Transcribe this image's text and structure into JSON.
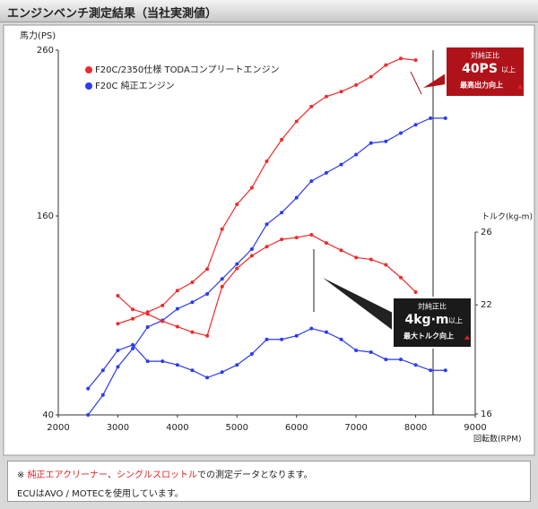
{
  "header": {
    "title": "エンジンベンチ測定結果（当社実測値）"
  },
  "chart_data": {
    "type": "line",
    "y_label": "馬力(PS)",
    "y2_label": "トルク(kg-m)",
    "x_label": "回転数(RPM)",
    "xlim": [
      2000,
      9000
    ],
    "xticks": [
      2000,
      3000,
      4000,
      5000,
      6000,
      7000,
      8000,
      9000
    ],
    "ylim": [
      40,
      260
    ],
    "yticks": [
      40,
      160,
      260
    ],
    "y2lim": [
      16,
      26
    ],
    "y2ticks": [
      16,
      22,
      26
    ],
    "series": [
      {
        "name": "F20C/2350仕様 TODAコンプリートエンジン",
        "color": "#ee2b2b",
        "x": [
          3000,
          3250,
          3500,
          3750,
          4000,
          4250,
          4500,
          4750,
          5000,
          5250,
          5500,
          5750,
          6000,
          6250,
          6500,
          6750,
          7000,
          7250,
          7500,
          7750,
          8000
        ],
        "values": [
          95,
          98,
          102,
          106,
          115,
          120,
          128,
          152,
          167,
          177,
          193,
          206,
          217,
          226,
          232,
          235,
          239,
          244,
          251,
          255,
          254
        ]
      },
      {
        "name": "F20C 純正エンジン",
        "color": "#2b3bee",
        "x": [
          2500,
          2750,
          3000,
          3250,
          3500,
          3750,
          4000,
          4250,
          4500,
          4750,
          5000,
          5250,
          5500,
          5750,
          6000,
          6250,
          6500,
          6750,
          7000,
          7250,
          7500,
          7750,
          8000,
          8250,
          8500
        ],
        "values": [
          40,
          52,
          69,
          80,
          93,
          97,
          104,
          108,
          113,
          122,
          131,
          140,
          155,
          162,
          171,
          181,
          186,
          191,
          197,
          204,
          205,
          210,
          215,
          219,
          219
        ]
      },
      {
        "axis": "y2",
        "color": "#ee2b2b",
        "x": [
          3000,
          3250,
          3500,
          3750,
          4000,
          4250,
          4500,
          4750,
          5000,
          5250,
          5500,
          5750,
          6000,
          6250,
          6500,
          6750,
          7000,
          7250,
          7500,
          7750,
          8000
        ],
        "values": [
          22.5,
          21.75,
          21.5,
          21.1,
          20.8,
          20.5,
          20.3,
          23.0,
          24.0,
          24.7,
          25.2,
          25.6,
          25.7,
          25.85,
          25.4,
          25.0,
          24.6,
          24.5,
          24.2,
          23.5,
          22.7
        ]
      },
      {
        "axis": "y2",
        "color": "#2b3bee",
        "x": [
          2500,
          2750,
          3000,
          3250,
          3500,
          3750,
          4000,
          4250,
          4500,
          4750,
          5000,
          5250,
          5500,
          5750,
          6000,
          6250,
          6500,
          6750,
          7000,
          7250,
          7500,
          7750,
          8000,
          8250,
          8500
        ],
        "values": [
          17.4,
          18.4,
          19.5,
          19.8,
          18.9,
          18.9,
          18.7,
          18.4,
          18.0,
          18.3,
          18.7,
          19.3,
          20.1,
          20.1,
          20.3,
          20.7,
          20.5,
          20.1,
          19.5,
          19.4,
          19.0,
          19.0,
          18.7,
          18.4,
          18.4
        ]
      }
    ],
    "legend": "upper left",
    "annotations": [
      {
        "label": "対純正比",
        "value": "40PS",
        "suffix": "以上",
        "caption": "最高出力向上"
      },
      {
        "label": "対純正比",
        "value": "4kg·m",
        "suffix": "以上",
        "caption": "最大トルク向上"
      }
    ]
  },
  "footer": {
    "line1": [
      "※ ",
      "純正エアクリーナー",
      "、",
      "シングルスロットル",
      "での測定データとなります。"
    ],
    "line2": "ECUはAVO / MOTECを使用しています。"
  }
}
